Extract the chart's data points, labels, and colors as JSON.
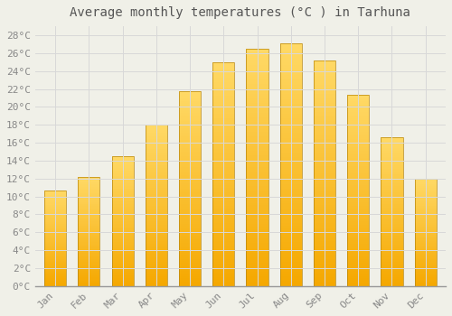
{
  "title": "Average monthly temperatures (°C ) in Tarhuna",
  "months": [
    "Jan",
    "Feb",
    "Mar",
    "Apr",
    "May",
    "Jun",
    "Jul",
    "Aug",
    "Sep",
    "Oct",
    "Nov",
    "Dec"
  ],
  "values": [
    10.7,
    12.2,
    14.5,
    18.0,
    21.7,
    25.0,
    26.5,
    27.1,
    25.2,
    21.3,
    16.6,
    12.0
  ],
  "bar_color_bottom": "#F5A800",
  "bar_color_top": "#FFD966",
  "bar_edge_color": "#B8860B",
  "background_color": "#F0F0E8",
  "grid_color": "#D8D8D8",
  "ylim": [
    0,
    29
  ],
  "ytick_step": 2,
  "title_fontsize": 10,
  "tick_fontsize": 8,
  "font_family": "monospace"
}
